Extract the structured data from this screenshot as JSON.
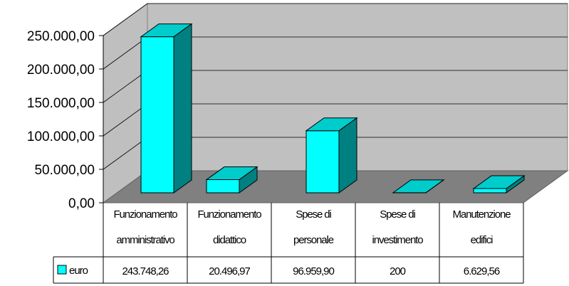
{
  "chart_data": {
    "type": "bar",
    "categories": [
      [
        "Funzionamento",
        "amministrativo"
      ],
      [
        "Funzionamento",
        "didattico"
      ],
      [
        "Spese di",
        "personale"
      ],
      [
        "Spese di",
        "investimento"
      ],
      [
        "Manutenzione",
        "edifici"
      ]
    ],
    "series": [
      {
        "name": "euro",
        "values": [
          243748.26,
          20496.97,
          96959.9,
          200,
          6629.56
        ],
        "display_values": [
          "243.748,26",
          "20.496,97",
          "96.959,90",
          "200",
          "6.629,56"
        ],
        "color": "#00FFFF"
      }
    ],
    "y_ticks": [
      "0,00",
      "50.000,00",
      "100.000,00",
      "150.000,00",
      "200.000,00",
      "250.000,00"
    ],
    "ylim": [
      0,
      250000
    ],
    "grid": true,
    "legend": "data-table",
    "three_d": true
  }
}
